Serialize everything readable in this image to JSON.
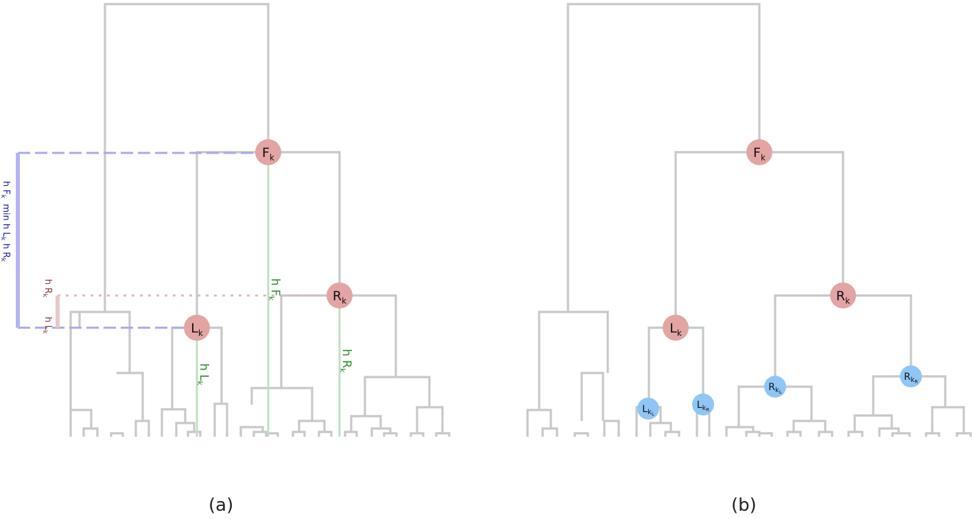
{
  "captions": {
    "a": "(a)",
    "b": "(b)"
  },
  "panel_a": {
    "node_f": {
      "main": "F",
      "sub": "k"
    },
    "node_r": {
      "main": "R",
      "sub": "k"
    },
    "node_l": {
      "main": "L",
      "sub": "k"
    },
    "h_fk": {
      "main": "h F",
      "sub": "k"
    },
    "h_rk": {
      "main": "h R",
      "sub": "k"
    },
    "h_lk": {
      "main": "h L",
      "sub": "k"
    },
    "side_rk": {
      "main": "h R",
      "sub": "k"
    },
    "side_lk": {
      "main": "h L",
      "sub": "k"
    },
    "blue_label": {
      "p1": "h F",
      "s1": "k",
      "p2": "  min h L",
      "s2": "k",
      "p3": " h R",
      "s3": "k"
    }
  },
  "panel_b": {
    "node_f": {
      "main": "F",
      "sub": "k"
    },
    "node_r": {
      "main": "R",
      "sub": "k"
    },
    "node_l": {
      "main": "L",
      "sub": "k"
    },
    "node_lkl": {
      "main": "L",
      "sub": "k",
      "subsub": "L"
    },
    "node_lkr": {
      "main": "L",
      "sub": "k",
      "subsub": "R"
    },
    "node_rkl": {
      "main": "R",
      "sub": "k",
      "subsub": "L"
    },
    "node_rkr": {
      "main": "R",
      "sub": "k",
      "subsub": "R"
    }
  },
  "colors": {
    "tree": "#c8c8c8",
    "node_red": "#e3a4a4",
    "node_blue": "#8fc6f5",
    "green": "#2e8b2e",
    "green_line": "#bfe0bf",
    "blue": "#1a1aa8",
    "blue_bar": "#b4b4f4",
    "brown": "#7a3a3a",
    "brown_bar": "#e5c9c9"
  }
}
